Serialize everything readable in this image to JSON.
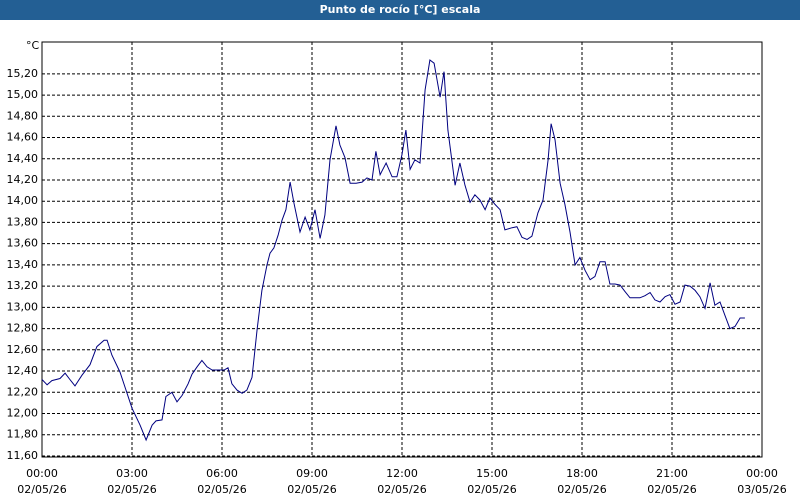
{
  "chart_data": {
    "type": "line",
    "title": "Punto de rocío [°C] escala",
    "y_label": "°C",
    "x": [
      0,
      0.17,
      0.33,
      0.6,
      0.77,
      0.93,
      1.1,
      1.33,
      1.6,
      1.83,
      2.07,
      2.17,
      2.33,
      2.6,
      2.8,
      3,
      3.27,
      3.47,
      3.67,
      3.8,
      4,
      4.13,
      4.33,
      4.5,
      4.67,
      4.87,
      5,
      5.17,
      5.33,
      5.5,
      5.67,
      5.87,
      6.07,
      6.2,
      6.33,
      6.5,
      6.67,
      6.83,
      7,
      7.17,
      7.33,
      7.5,
      7.6,
      7.73,
      7.87,
      8,
      8.13,
      8.27,
      8.4,
      8.6,
      8.77,
      8.93,
      9.1,
      9.27,
      9.43,
      9.6,
      9.8,
      9.93,
      10.1,
      10.27,
      10.47,
      10.67,
      10.83,
      11,
      11.13,
      11.27,
      11.47,
      11.67,
      11.83,
      12,
      12.13,
      12.27,
      12.43,
      12.6,
      12.77,
      12.93,
      13.07,
      13.27,
      13.4,
      13.53,
      13.77,
      13.93,
      14.1,
      14.27,
      14.43,
      14.6,
      14.77,
      14.93,
      15.1,
      15.27,
      15.43,
      15.67,
      15.83,
      16,
      16.17,
      16.33,
      16.53,
      16.7,
      16.87,
      16.97,
      17.1,
      17.27,
      17.43,
      17.6,
      17.77,
      17.93,
      18.1,
      18.27,
      18.43,
      18.6,
      18.77,
      18.93,
      19.1,
      19.27,
      19.43,
      19.6,
      19.77,
      19.93,
      20.1,
      20.27,
      20.43,
      20.6,
      20.77,
      20.93,
      21.1,
      21.27,
      21.43,
      21.6,
      21.77,
      21.93,
      22.1,
      22.27,
      22.43,
      22.6,
      22.77,
      22.93,
      23.1,
      23.27,
      23.43
    ],
    "values": [
      12.32,
      12.27,
      12.31,
      12.33,
      12.38,
      12.32,
      12.26,
      12.36,
      12.46,
      12.63,
      12.69,
      12.69,
      12.55,
      12.39,
      12.22,
      12.05,
      11.89,
      11.75,
      11.89,
      11.93,
      11.94,
      12.16,
      12.2,
      12.11,
      12.17,
      12.28,
      12.37,
      12.44,
      12.5,
      12.44,
      12.41,
      12.41,
      12.41,
      12.43,
      12.28,
      12.22,
      12.19,
      12.22,
      12.34,
      12.79,
      13.16,
      13.4,
      13.51,
      13.56,
      13.68,
      13.82,
      13.92,
      14.18,
      13.98,
      13.71,
      13.85,
      13.73,
      13.92,
      13.65,
      13.87,
      14.39,
      14.71,
      14.53,
      14.41,
      14.17,
      14.17,
      14.18,
      14.22,
      14.2,
      14.47,
      14.25,
      14.36,
      14.23,
      14.23,
      14.44,
      14.67,
      14.3,
      14.39,
      14.36,
      15.05,
      15.33,
      15.3,
      14.98,
      15.22,
      14.67,
      14.15,
      14.36,
      14.15,
      13.99,
      14.06,
      14.01,
      13.92,
      14.03,
      13.97,
      13.92,
      13.73,
      13.75,
      13.76,
      13.66,
      13.64,
      13.67,
      13.89,
      14.01,
      14.39,
      14.73,
      14.58,
      14.17,
      13.97,
      13.71,
      13.4,
      13.47,
      13.35,
      13.26,
      13.29,
      13.43,
      13.43,
      13.22,
      13.22,
      13.21,
      13.15,
      13.09,
      13.09,
      13.09,
      13.11,
      13.14,
      13.07,
      13.05,
      13.1,
      13.12,
      13.03,
      13.05,
      13.21,
      13.2,
      13.16,
      13.1,
      12.99,
      13.23,
      13.02,
      13.05,
      12.92,
      12.8,
      12.82,
      12.9,
      12.9
    ],
    "color": "#000080",
    "xlim": [
      0,
      24
    ],
    "xticks": [
      {
        "value": 0,
        "label": "00:00\n02/05/26"
      },
      {
        "value": 3,
        "label": "03:00\n02/05/26"
      },
      {
        "value": 6,
        "label": "06:00\n02/05/26"
      },
      {
        "value": 9,
        "label": "09:00\n02/05/26"
      },
      {
        "value": 12,
        "label": "12:00\n02/05/26"
      },
      {
        "value": 15,
        "label": "15:00\n02/05/26"
      },
      {
        "value": 18,
        "label": "18:00\n02/05/26"
      },
      {
        "value": 21,
        "label": "21:00\n02/05/26"
      },
      {
        "value": 24,
        "label": "00:00\n03/05/26"
      }
    ],
    "ylim": [
      11.59,
      15.5
    ],
    "yticks": [
      {
        "value": 11.6,
        "label": "11,60"
      },
      {
        "value": 11.8,
        "label": "11,80"
      },
      {
        "value": 12.0,
        "label": "12,00"
      },
      {
        "value": 12.2,
        "label": "12,20"
      },
      {
        "value": 12.4,
        "label": "12,40"
      },
      {
        "value": 12.6,
        "label": "12,60"
      },
      {
        "value": 12.8,
        "label": "12,80"
      },
      {
        "value": 13.0,
        "label": "13,00"
      },
      {
        "value": 13.2,
        "label": "13,20"
      },
      {
        "value": 13.4,
        "label": "13,40"
      },
      {
        "value": 13.6,
        "label": "13,60"
      },
      {
        "value": 13.8,
        "label": "13,80"
      },
      {
        "value": 14.0,
        "label": "14,00"
      },
      {
        "value": 14.2,
        "label": "14,20"
      },
      {
        "value": 14.4,
        "label": "14,40"
      },
      {
        "value": 14.6,
        "label": "14,60"
      },
      {
        "value": 14.8,
        "label": "14,80"
      },
      {
        "value": 15.0,
        "label": "15,00"
      },
      {
        "value": 15.2,
        "label": "15,20"
      }
    ],
    "grid": true
  }
}
